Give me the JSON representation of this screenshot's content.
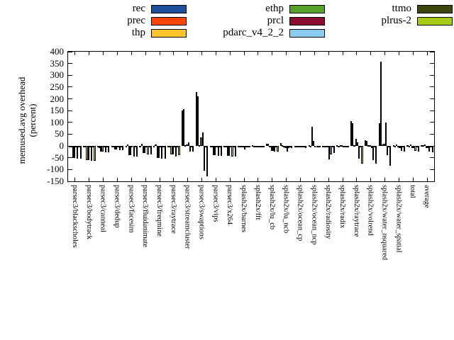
{
  "chart_data": {
    "type": "bar",
    "title": "",
    "ylabel": "memused.avg overhead (percent)",
    "ylabel_lines": [
      "memused.avg overhead",
      "(percent)"
    ],
    "ylim": [
      -150,
      400
    ],
    "yticks": [
      400,
      350,
      300,
      250,
      200,
      150,
      100,
      50,
      0,
      -50,
      -100,
      -150
    ],
    "grid": false,
    "legend_position": "top",
    "legend_columns": [
      [
        0,
        1,
        2
      ],
      [
        3,
        4,
        5
      ],
      [
        6,
        7
      ]
    ],
    "categories": [
      "parsec3/blackscholes",
      "parsec3/bodytrack",
      "parsec3/canneal",
      "parsec3/dedup",
      "parsec3/facesim",
      "parsec3/fluidanimate",
      "parsec3/freqmine",
      "parsec3/raytrace",
      "parsec3/streamcluster",
      "parsec3/swaptions",
      "parsec3/vips",
      "parsec3/x264",
      "splash2x/barnes",
      "splash2x/fft",
      "splash2x/lu_cb",
      "splash2x/lu_ncb",
      "splash2x/ocean_cp",
      "splash2x/ocean_ncp",
      "splash2x/radiosity",
      "splash2x/radix",
      "splash2x/raytrace",
      "splash2x/volrend",
      "splash2x/water_nsquared",
      "splash2x/water_spatial",
      "total",
      "average"
    ],
    "series": [
      {
        "name": "rec",
        "color": "#1d4f9e",
        "values": [
          -1,
          -1,
          -2,
          -1,
          -1,
          -1,
          -1,
          -1,
          150,
          230,
          -2,
          -2,
          -1,
          1,
          8,
          13,
          -1,
          2,
          -2,
          3,
          105,
          25,
          95,
          2,
          2,
          2
        ]
      },
      {
        "name": "prec",
        "color": "#ff4500",
        "values": [
          -5,
          -4,
          -8,
          -3,
          5,
          10,
          5,
          -3,
          157,
          212,
          -5,
          -5,
          -3,
          -2,
          8,
          2,
          -2,
          -2,
          -3,
          -2,
          95,
          20,
          358,
          -3,
          -2,
          3
        ]
      },
      {
        "name": "thp",
        "color": "#fdc32b",
        "values": [
          -52,
          -60,
          -25,
          -15,
          -38,
          -30,
          -50,
          -35,
          3,
          3,
          -38,
          -42,
          -4,
          -3,
          -2,
          -2,
          -3,
          80,
          -3,
          3,
          3,
          2,
          5,
          5,
          5,
          5
        ]
      },
      {
        "name": "ethp",
        "color": "#56a228",
        "values": [
          -52,
          -60,
          -25,
          -15,
          -38,
          -30,
          -50,
          -35,
          5,
          35,
          -38,
          -42,
          -4,
          -3,
          -20,
          -8,
          -3,
          20,
          -5,
          3,
          30,
          3,
          8,
          -5,
          -8,
          -8
        ]
      },
      {
        "name": "prcl",
        "color": "#8b0a30",
        "values": [
          -3,
          -3,
          -5,
          -4,
          -2,
          -2,
          -2,
          -2,
          15,
          57,
          -3,
          -3,
          -14,
          -4,
          -22,
          -24,
          -4,
          -3,
          -58,
          -3,
          15,
          -8,
          100,
          -8,
          -10,
          -10
        ]
      },
      {
        "name": "pdarc_v4_2_2",
        "color": "#8bccf1",
        "values": [
          -55,
          -63,
          -28,
          -18,
          -45,
          -35,
          -55,
          -45,
          -25,
          -105,
          -42,
          -46,
          -6,
          -4,
          -24,
          -10,
          -6,
          -5,
          -35,
          -4,
          -55,
          -60,
          -40,
          -20,
          -22,
          -25
        ]
      },
      {
        "name": "ttmo",
        "color": "#3e460f",
        "values": [
          -3,
          -3,
          -4,
          -3,
          -2,
          -2,
          -2,
          -2,
          -3,
          -5,
          -3,
          -3,
          -3,
          -2,
          -4,
          -3,
          -2,
          -2,
          -4,
          -2,
          -4,
          -5,
          -5,
          -4,
          -3,
          -3
        ]
      },
      {
        "name": "plrus-2",
        "color": "#a6cb13",
        "values": [
          -55,
          -63,
          -28,
          -18,
          -45,
          -35,
          -55,
          -40,
          -25,
          -130,
          -42,
          -46,
          -6,
          -4,
          -24,
          -10,
          -8,
          -6,
          -30,
          -3,
          -75,
          -75,
          -85,
          -25,
          -25,
          -28
        ]
      }
    ]
  }
}
